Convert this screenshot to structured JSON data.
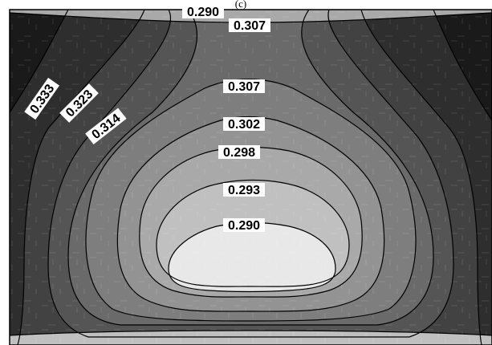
{
  "chart_data": {
    "type": "heatmap",
    "subtype": "filled-contour",
    "panel_label": "(c)",
    "contour_levels": [
      0.29,
      0.293,
      0.298,
      0.302,
      0.307,
      0.314,
      0.323,
      0.333
    ],
    "contour_labels": [
      {
        "id": "top-edge",
        "text": "0.290"
      },
      {
        "id": "top-neck",
        "text": "0.307"
      },
      {
        "id": "upper-mid",
        "text": "0.307"
      },
      {
        "id": "mid-1",
        "text": "0.302"
      },
      {
        "id": "mid-2",
        "text": "0.298"
      },
      {
        "id": "mid-3",
        "text": "0.293"
      },
      {
        "id": "core",
        "text": "0.290"
      },
      {
        "id": "left-1",
        "text": "0.333"
      },
      {
        "id": "left-2",
        "text": "0.323"
      },
      {
        "id": "left-3",
        "text": "0.314"
      }
    ],
    "colors": {
      "band_0": "#1a1a1a",
      "band_1": "#2e2e2e",
      "band_2": "#424242",
      "band_3": "#555555",
      "band_4": "#6a6a6a",
      "band_5": "#7e7e7e",
      "band_6": "#939393",
      "band_7": "#a9a9a9",
      "band_8": "#c0c0c0",
      "core": "#e8e8e8",
      "line": "#000000"
    },
    "grid": true
  }
}
